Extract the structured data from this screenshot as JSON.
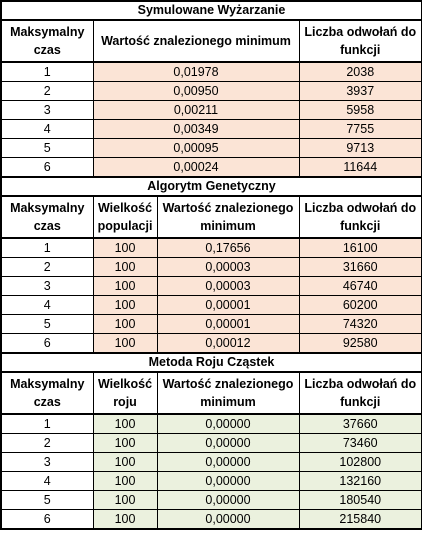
{
  "sa": {
    "title": "Symulowane Wyżarzanie",
    "headers": [
      "Maksymalny czas",
      "Wartość znalezionego minimum",
      "Liczba odwołań do funkcji"
    ],
    "rows": [
      {
        "time": "1",
        "min": "0,01978",
        "calls": "2038"
      },
      {
        "time": "2",
        "min": "0,00950",
        "calls": "3937"
      },
      {
        "time": "3",
        "min": "0,00211",
        "calls": "5958"
      },
      {
        "time": "4",
        "min": "0,00349",
        "calls": "7755"
      },
      {
        "time": "5",
        "min": "0,00095",
        "calls": "9713"
      },
      {
        "time": "6",
        "min": "0,00024",
        "calls": "11644"
      }
    ]
  },
  "ga": {
    "title": "Algorytm Genetyczny",
    "headers": [
      "Maksymalny czas",
      "Wielkość populacji",
      "Wartość znalezionego minimum",
      "Liczba odwołań do funkcji"
    ],
    "rows": [
      {
        "time": "1",
        "size": "100",
        "min": "0,17656",
        "calls": "16100"
      },
      {
        "time": "2",
        "size": "100",
        "min": "0,00003",
        "calls": "31660"
      },
      {
        "time": "3",
        "size": "100",
        "min": "0,00003",
        "calls": "46740"
      },
      {
        "time": "4",
        "size": "100",
        "min": "0,00001",
        "calls": "60200"
      },
      {
        "time": "5",
        "size": "100",
        "min": "0,00001",
        "calls": "74320"
      },
      {
        "time": "6",
        "size": "100",
        "min": "0,00012",
        "calls": "92580"
      }
    ]
  },
  "pso": {
    "title": "Metoda Roju Cząstek",
    "headers": [
      "Maksymalny czas",
      "Wielkość roju",
      "Wartość znalezionego minimum",
      "Liczba odwołań do funkcji"
    ],
    "rows": [
      {
        "time": "1",
        "size": "100",
        "min": "0,00000",
        "calls": "37660"
      },
      {
        "time": "2",
        "size": "100",
        "min": "0,00000",
        "calls": "73460"
      },
      {
        "time": "3",
        "size": "100",
        "min": "0,00000",
        "calls": "102800"
      },
      {
        "time": "4",
        "size": "100",
        "min": "0,00000",
        "calls": "132160"
      },
      {
        "time": "5",
        "size": "100",
        "min": "0,00000",
        "calls": "180540"
      },
      {
        "time": "6",
        "size": "100",
        "min": "0,00000",
        "calls": "215840"
      }
    ]
  },
  "colors": {
    "sa_fill": "#fbe4d6",
    "ga_fill": "#fbe4d6",
    "pso_fill": "#ebf1de"
  }
}
